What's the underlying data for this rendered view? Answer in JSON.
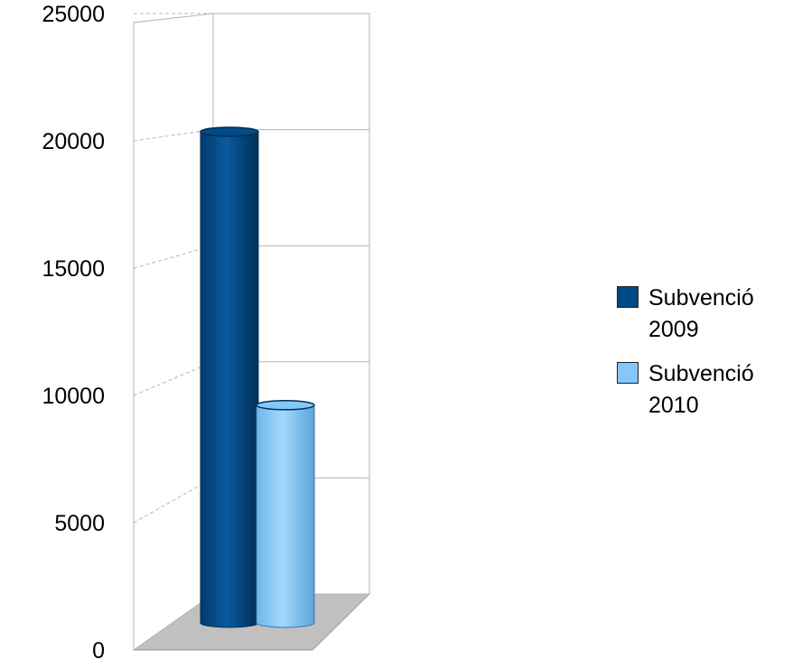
{
  "chart_data": {
    "type": "bar",
    "categories": [
      ""
    ],
    "series": [
      {
        "name": "Subvenció 2009",
        "values": [
          20300
        ]
      },
      {
        "name": "Subvenció 2010",
        "values": [
          9000
        ]
      }
    ],
    "colors": [
      "#024a86",
      "#84c8fa"
    ],
    "ylim": [
      0,
      25000
    ],
    "yticks": [
      "0",
      "5000",
      "10000",
      "15000",
      "20000",
      "25000"
    ],
    "grid": true,
    "style": "3d-cylinder",
    "legend_position": "right"
  }
}
